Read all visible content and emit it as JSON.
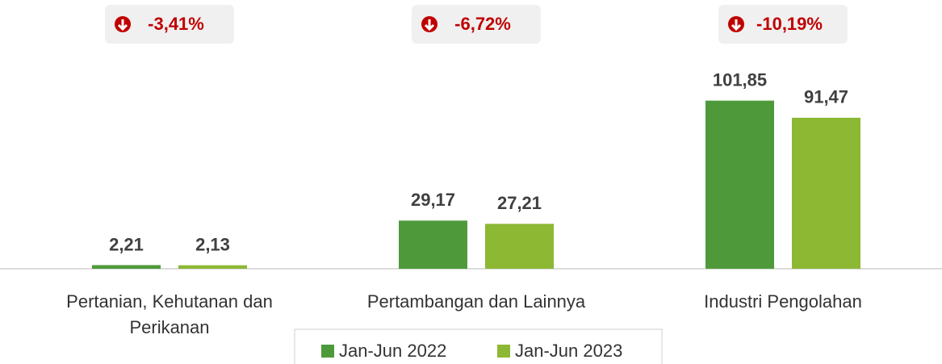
{
  "chart_data": {
    "type": "bar",
    "categories": [
      "Pertanian, Kehutanan dan Perikanan",
      "Pertambangan dan Lainnya",
      "Industri Pengolahan"
    ],
    "series": [
      {
        "name": "Jan-Jun 2022",
        "color": "#4e9a3b",
        "values": [
          2.21,
          29.17,
          101.85
        ],
        "value_labels": [
          "2,21",
          "29,17",
          "101,85"
        ]
      },
      {
        "name": "Jan-Jun 2023",
        "color": "#8cb834",
        "values": [
          2.13,
          27.21,
          91.47
        ],
        "value_labels": [
          "2,13",
          "27,21",
          "91,47"
        ]
      }
    ],
    "annotations": [
      "-3,41%",
      "-6,72%",
      "-10,19%"
    ],
    "ylim": [
      0,
      110
    ],
    "legend": "bottom"
  }
}
